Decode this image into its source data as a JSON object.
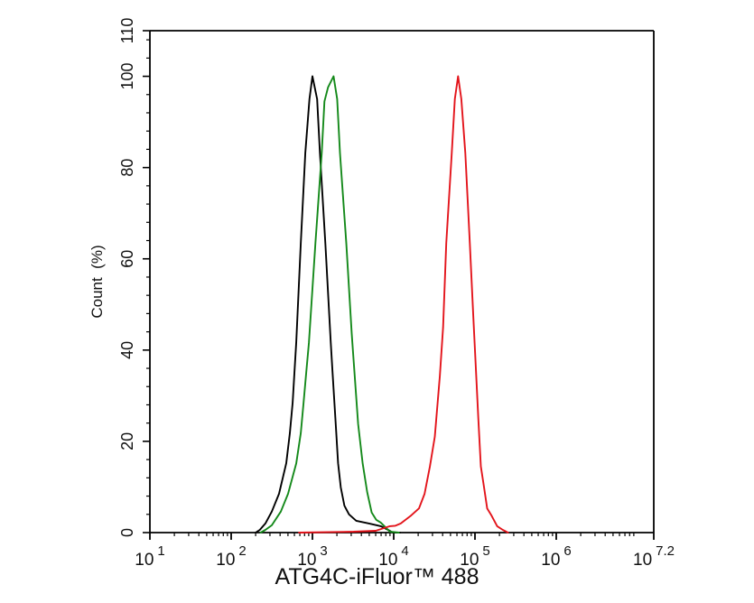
{
  "chart_data": {
    "type": "line",
    "title": "",
    "xlabel": "ATG4C-iFluor™ 488",
    "ylabel": "Count  (%)",
    "grid": false,
    "legend": null,
    "x_axis": {
      "scale": "log",
      "range_log10": [
        1,
        7.2
      ],
      "tick_base": "10",
      "major_ticks": [
        {
          "exp": "1",
          "log10": 1
        },
        {
          "exp": "2",
          "log10": 2
        },
        {
          "exp": "3",
          "log10": 3
        },
        {
          "exp": "4",
          "log10": 4
        },
        {
          "exp": "5",
          "log10": 5
        },
        {
          "exp": "6",
          "log10": 6
        },
        {
          "exp": "7.2",
          "log10": 7.2
        }
      ]
    },
    "y_axis": {
      "range": [
        0,
        110
      ],
      "major_ticks": [
        0,
        20,
        40,
        60,
        80,
        100,
        110
      ],
      "minor_step": 4
    },
    "series": [
      {
        "name": "Black trace",
        "color": "#000000",
        "peak_x": 1000,
        "points": [
          [
            200,
            0
          ],
          [
            225,
            0.6
          ],
          [
            264,
            2.0
          ],
          [
            316,
            4.6
          ],
          [
            388,
            8.5
          ],
          [
            476,
            15.2
          ],
          [
            528,
            21.8
          ],
          [
            571,
            28.5
          ],
          [
            601,
            35.2
          ],
          [
            632,
            41.8
          ],
          [
            719,
            63.4
          ],
          [
            818,
            83.2
          ],
          [
            920,
            95
          ],
          [
            1000,
            100
          ],
          [
            1143,
            95
          ],
          [
            1236,
            83.2
          ],
          [
            1442,
            63.4
          ],
          [
            1683,
            41.6
          ],
          [
            1771,
            35.0
          ],
          [
            1866,
            28.3
          ],
          [
            1965,
            21.8
          ],
          [
            2067,
            15.2
          ],
          [
            2233,
            9.9
          ],
          [
            2476,
            5.9
          ],
          [
            2818,
            4.0
          ],
          [
            3461,
            2.6
          ],
          [
            4968,
            2.0
          ],
          [
            6937,
            1.4
          ],
          [
            8530,
            0.6
          ],
          [
            9710,
            0
          ],
          [
            12000,
            0
          ]
        ]
      },
      {
        "name": "Green trace",
        "color": "#14891a",
        "peak_x": 1820,
        "points": [
          [
            230,
            0
          ],
          [
            264,
            0.6
          ],
          [
            316,
            1.6
          ],
          [
            408,
            4.6
          ],
          [
            501,
            8.5
          ],
          [
            632,
            15.2
          ],
          [
            719,
            21.8
          ],
          [
            777,
            28.3
          ],
          [
            839,
            35.0
          ],
          [
            906,
            41.6
          ],
          [
            1087,
            63.4
          ],
          [
            1301,
            83.2
          ],
          [
            1406,
            94.5
          ],
          [
            1556,
            97.6
          ],
          [
            1820,
            100
          ],
          [
            2014,
            95
          ],
          [
            2180,
            83.2
          ],
          [
            2608,
            63.4
          ],
          [
            3043,
            43.6
          ],
          [
            3646,
            23.8
          ],
          [
            4144,
            15.2
          ],
          [
            4710,
            8.9
          ],
          [
            5360,
            4.4
          ],
          [
            6095,
            2.8
          ],
          [
            6937,
            2.2
          ],
          [
            7890,
            1.2
          ],
          [
            8977,
            0.2
          ],
          [
            11610,
            0
          ]
        ]
      },
      {
        "name": "Red trace",
        "color": "#e3141b",
        "peak_x": 61950,
        "points": [
          [
            683,
            0
          ],
          [
            3207,
            0.2
          ],
          [
            6000,
            0.4
          ],
          [
            8977,
            1.4
          ],
          [
            10500,
            1.5
          ],
          [
            12220,
            2.0
          ],
          [
            16000,
            3.6
          ],
          [
            20460,
            5.3
          ],
          [
            24000,
            8.5
          ],
          [
            27870,
            14.5
          ],
          [
            32000,
            21
          ],
          [
            36980,
            34.3
          ],
          [
            40500,
            45
          ],
          [
            44350,
            63.4
          ],
          [
            51760,
            83.2
          ],
          [
            56500,
            95
          ],
          [
            61950,
            100
          ],
          [
            68000,
            95
          ],
          [
            76100,
            83.2
          ],
          [
            86500,
            63.4
          ],
          [
            95000,
            48
          ],
          [
            103700,
            34.3
          ],
          [
            110000,
            25
          ],
          [
            118000,
            14.5
          ],
          [
            128000,
            10.5
          ],
          [
            141300,
            5.3
          ],
          [
            160000,
            3.7
          ],
          [
            187500,
            1.4
          ],
          [
            220000,
            0.6
          ],
          [
            255300,
            0
          ]
        ]
      }
    ]
  }
}
